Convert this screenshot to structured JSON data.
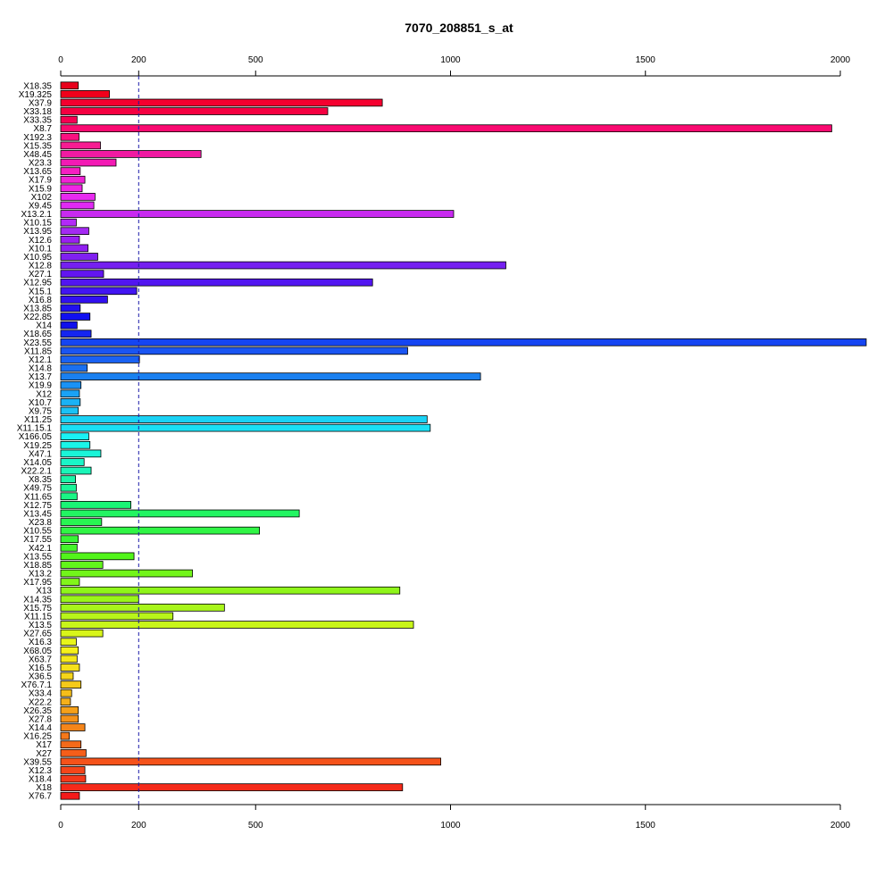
{
  "chart_data": {
    "type": "bar",
    "orientation": "horizontal",
    "title": "7070_208851_s_at",
    "xlim": [
      0,
      2000
    ],
    "xticks": [
      0,
      200,
      500,
      1000,
      1500,
      2000
    ],
    "reference_line": 200,
    "grid": false,
    "categories": [
      "X18.35",
      "X19.325",
      "X37.9",
      "X33.18",
      "X33.35",
      "X8.7",
      "X192.3",
      "X15.35",
      "X48.45",
      "X23.3",
      "X13.65",
      "X17.9",
      "X15.9",
      "X102",
      "X9.45",
      "X13.2.1",
      "X10.15",
      "X13.95",
      "X12.6",
      "X10.1",
      "X10.95",
      "X12.8",
      "X27.1",
      "X12.95",
      "X15.1",
      "X16.8",
      "X13.85",
      "X22.85",
      "X14",
      "X18.65",
      "X23.55",
      "X11.85",
      "X12.1",
      "X14.8",
      "X13.7",
      "X19.9",
      "X12",
      "X10.7",
      "X9.75",
      "X11.25",
      "X11.15.1",
      "X166.05",
      "X19.25",
      "X47.1",
      "X14.05",
      "X22.2.1",
      "X8.35",
      "X49.75",
      "X11.65",
      "X12.75",
      "X13.45",
      "X23.8",
      "X10.55",
      "X17.55",
      "X42.1",
      "X13.55",
      "X18.85",
      "X13.2",
      "X17.95",
      "X13",
      "X14.35",
      "X15.75",
      "X11.15",
      "X13.5",
      "X27.65",
      "X16.3",
      "X68.05",
      "X63.7",
      "X16.5",
      "X36.5",
      "X76.7.1",
      "X33.4",
      "X22.2",
      "X26.35",
      "X27.8",
      "X14.4",
      "X16.25",
      "X17",
      "X27",
      "X39.55",
      "X12.3",
      "X18.4",
      "X18",
      "X76.7"
    ],
    "values": [
      45,
      125,
      825,
      685,
      42,
      1978,
      47,
      102,
      360,
      142,
      50,
      62,
      55,
      88,
      85,
      1008,
      40,
      72,
      48,
      70,
      95,
      1142,
      110,
      800,
      195,
      120,
      50,
      75,
      42,
      78,
      2070,
      890,
      202,
      68,
      1077,
      52,
      48,
      50,
      45,
      940,
      948,
      72,
      75,
      103,
      60,
      78,
      38,
      40,
      42,
      180,
      612,
      105,
      510,
      45,
      42,
      188,
      108,
      338,
      48,
      870,
      200,
      420,
      288,
      905,
      108,
      40,
      45,
      42,
      48,
      32,
      52,
      28,
      25,
      45,
      45,
      62,
      22,
      52,
      65,
      975,
      62,
      64,
      877,
      48
    ],
    "colors": [
      "#E8001C",
      "#F0001B",
      "#F5002F",
      "#F50041",
      "#F70052",
      "#FA0A71",
      "#FA1080",
      "#F71C92",
      "#F01AA2",
      "#F31AB4",
      "#F61EC2",
      "#F023D5",
      "#F025E4",
      "#E82AF0",
      "#E02AF5",
      "#C82AF0",
      "#B22AF7",
      "#A42AF2",
      "#9A20F2",
      "#9020F0",
      "#8020F0",
      "#7520F0",
      "#6215F0",
      "#5215F0",
      "#4215F2",
      "#3210F0",
      "#2010EF",
      "#1010F0",
      "#1010EB",
      "#1525F0",
      "#1545F2",
      "#1A55F2",
      "#1A62F2",
      "#1A70F0",
      "#1A80F0",
      "#1A92F5",
      "#1AA2F5",
      "#1AB2F5",
      "#1AC2F5",
      "#1AD2F5",
      "#1AE0F5",
      "#1AF2F5",
      "#1AF5E8",
      "#1AF5D8",
      "#1AF5C8",
      "#1AF5B8",
      "#1AF5A8",
      "#1AF598",
      "#1AF585",
      "#1AF575",
      "#22F562",
      "#28F552",
      "#30F545",
      "#38F535",
      "#45F52A",
      "#52F51A",
      "#62F51A",
      "#72F51A",
      "#82F51A",
      "#8FF51A",
      "#9AF51A",
      "#A8F51A",
      "#B8F51A",
      "#C8F51A",
      "#D8F51A",
      "#E8F51A",
      "#F5F01A",
      "#F5E81A",
      "#F5E01A",
      "#F5D51A",
      "#F5CA1A",
      "#F5BE1A",
      "#F5B01A",
      "#F5A01A",
      "#F5921A",
      "#F5851A",
      "#F5781A",
      "#F56A1A",
      "#F55E1A",
      "#F5521A",
      "#F5451A",
      "#F5381A",
      "#F52A1A",
      "#F51A1A"
    ]
  }
}
